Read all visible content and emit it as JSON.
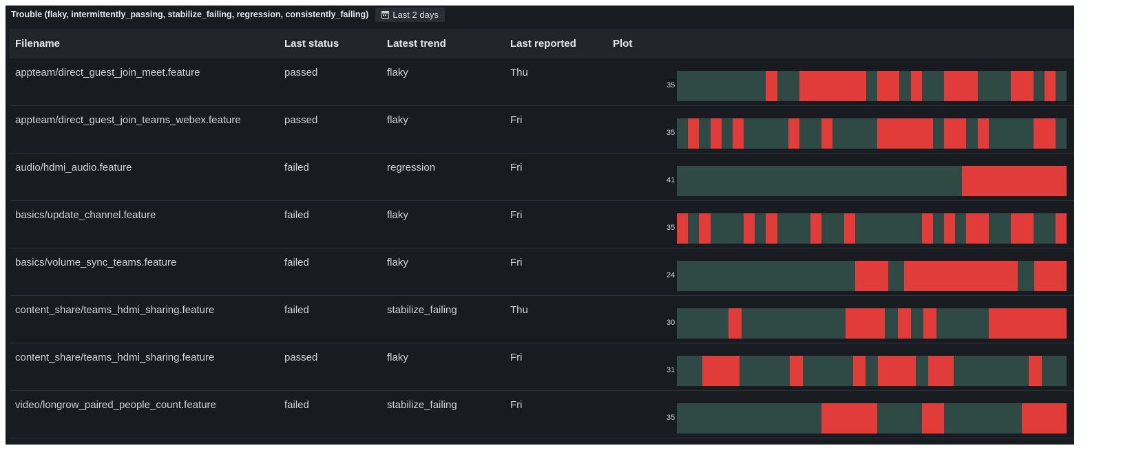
{
  "panel": {
    "title": "Trouble (flaky, intermittently_passing, stabilize_failing, regression, consistently_failing)",
    "time_range": "Last 2 days",
    "time_icon": "calendar-icon"
  },
  "colors": {
    "pass": "#2f4a44",
    "fail": "#e23c3a"
  },
  "columns": [
    "Filename",
    "Last status",
    "Latest trend",
    "Last reported",
    "Plot"
  ],
  "rows": [
    {
      "filename": "appteam/direct_guest_join_meet.feature",
      "status": "passed",
      "trend": "flaky",
      "reported": "Thu",
      "count": "35",
      "runs": [
        [
          "p",
          8
        ],
        [
          "f",
          1
        ],
        [
          "p",
          2
        ],
        [
          "f",
          6
        ],
        [
          "p",
          1
        ],
        [
          "f",
          2
        ],
        [
          "p",
          1
        ],
        [
          "f",
          1
        ],
        [
          "p",
          2
        ],
        [
          "f",
          3
        ],
        [
          "p",
          3
        ],
        [
          "f",
          2
        ],
        [
          "p",
          1
        ],
        [
          "f",
          1
        ],
        [
          "p",
          1
        ]
      ]
    },
    {
      "filename": "appteam/direct_guest_join_teams_webex.feature",
      "status": "passed",
      "trend": "flaky",
      "reported": "Fri",
      "count": "35",
      "runs": [
        [
          "p",
          1
        ],
        [
          "f",
          1
        ],
        [
          "p",
          1
        ],
        [
          "f",
          1
        ],
        [
          "p",
          1
        ],
        [
          "f",
          1
        ],
        [
          "p",
          4
        ],
        [
          "f",
          1
        ],
        [
          "p",
          2
        ],
        [
          "f",
          1
        ],
        [
          "p",
          4
        ],
        [
          "f",
          5
        ],
        [
          "p",
          1
        ],
        [
          "f",
          2
        ],
        [
          "p",
          1
        ],
        [
          "f",
          1
        ],
        [
          "p",
          4
        ],
        [
          "f",
          2
        ],
        [
          "p",
          1
        ]
      ]
    },
    {
      "filename": "audio/hdmi_audio.feature",
      "status": "failed",
      "trend": "regression",
      "reported": "Fri",
      "count": "41",
      "runs": [
        [
          "p",
          30
        ],
        [
          "f",
          11
        ]
      ]
    },
    {
      "filename": "basics/update_channel.feature",
      "status": "failed",
      "trend": "flaky",
      "reported": "Fri",
      "count": "35",
      "runs": [
        [
          "f",
          1
        ],
        [
          "p",
          1
        ],
        [
          "f",
          1
        ],
        [
          "p",
          3
        ],
        [
          "f",
          1
        ],
        [
          "p",
          1
        ],
        [
          "f",
          1
        ],
        [
          "p",
          3
        ],
        [
          "f",
          1
        ],
        [
          "p",
          2
        ],
        [
          "f",
          1
        ],
        [
          "p",
          6
        ],
        [
          "f",
          1
        ],
        [
          "p",
          1
        ],
        [
          "f",
          1
        ],
        [
          "p",
          1
        ],
        [
          "f",
          2
        ],
        [
          "p",
          2
        ],
        [
          "f",
          2
        ],
        [
          "p",
          2
        ],
        [
          "f",
          1
        ]
      ]
    },
    {
      "filename": "basics/volume_sync_teams.feature",
      "status": "failed",
      "trend": "flaky",
      "reported": "Fri",
      "count": "24",
      "runs": [
        [
          "p",
          11
        ],
        [
          "f",
          2
        ],
        [
          "p",
          1
        ],
        [
          "f",
          7
        ],
        [
          "p",
          1
        ],
        [
          "f",
          2
        ]
      ]
    },
    {
      "filename": "content_share/teams_hdmi_sharing.feature",
      "status": "failed",
      "trend": "stabilize_failing",
      "reported": "Thu",
      "count": "30",
      "runs": [
        [
          "p",
          4
        ],
        [
          "f",
          1
        ],
        [
          "p",
          8
        ],
        [
          "f",
          3
        ],
        [
          "p",
          1
        ],
        [
          "f",
          1
        ],
        [
          "p",
          1
        ],
        [
          "f",
          1
        ],
        [
          "p",
          4
        ],
        [
          "f",
          6
        ]
      ]
    },
    {
      "filename": "content_share/teams_hdmi_sharing.feature",
      "status": "passed",
      "trend": "flaky",
      "reported": "Fri",
      "count": "31",
      "runs": [
        [
          "p",
          2
        ],
        [
          "f",
          3
        ],
        [
          "p",
          4
        ],
        [
          "f",
          1
        ],
        [
          "p",
          4
        ],
        [
          "f",
          1
        ],
        [
          "p",
          1
        ],
        [
          "f",
          3
        ],
        [
          "p",
          1
        ],
        [
          "f",
          2
        ],
        [
          "p",
          6
        ],
        [
          "f",
          1
        ],
        [
          "p",
          2
        ]
      ]
    },
    {
      "filename": "video/longrow_paired_people_count.feature",
      "status": "failed",
      "trend": "stabilize_failing",
      "reported": "Fri",
      "count": "35",
      "runs": [
        [
          "p",
          13
        ],
        [
          "f",
          5
        ],
        [
          "p",
          4
        ],
        [
          "f",
          2
        ],
        [
          "p",
          7
        ],
        [
          "f",
          4
        ]
      ]
    }
  ]
}
